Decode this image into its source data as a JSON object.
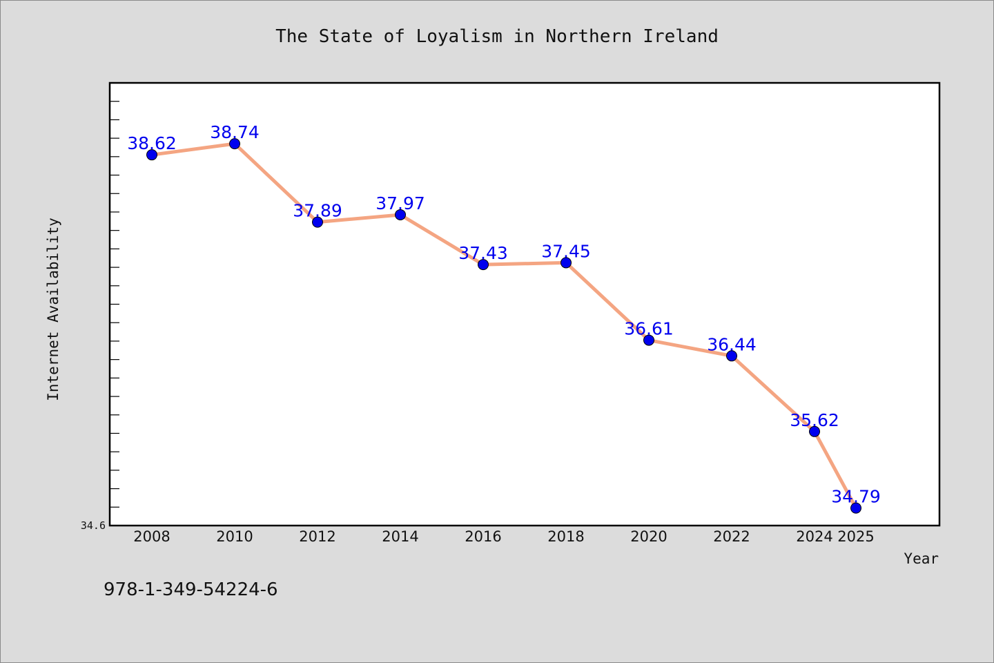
{
  "chart_data": {
    "type": "line",
    "title": "The State of Loyalism in Northern Ireland",
    "xlabel": "Year",
    "ylabel": "Internet Availability",
    "x": [
      "2008",
      "2010",
      "2012",
      "2014",
      "2016",
      "2018",
      "2020",
      "2022",
      "2024",
      "2025"
    ],
    "series": [
      {
        "values": [
          38.62,
          38.74,
          37.89,
          37.97,
          37.43,
          37.45,
          36.61,
          36.44,
          35.62,
          34.79
        ],
        "data_labels": [
          "38.62",
          "38.74",
          "37.89",
          "37.97",
          "37.43",
          "37.45",
          "36.61",
          "36.44",
          "35.62",
          "34.79"
        ]
      }
    ],
    "y_tick_labels": [
      "34.6"
    ],
    "ylim": [
      34.6,
      39.4
    ],
    "grid": false,
    "line_color": "#f4a582",
    "marker_color": "#0000ee",
    "label_color": "#0000ee"
  },
  "footnote": "978-1-349-54224-6"
}
